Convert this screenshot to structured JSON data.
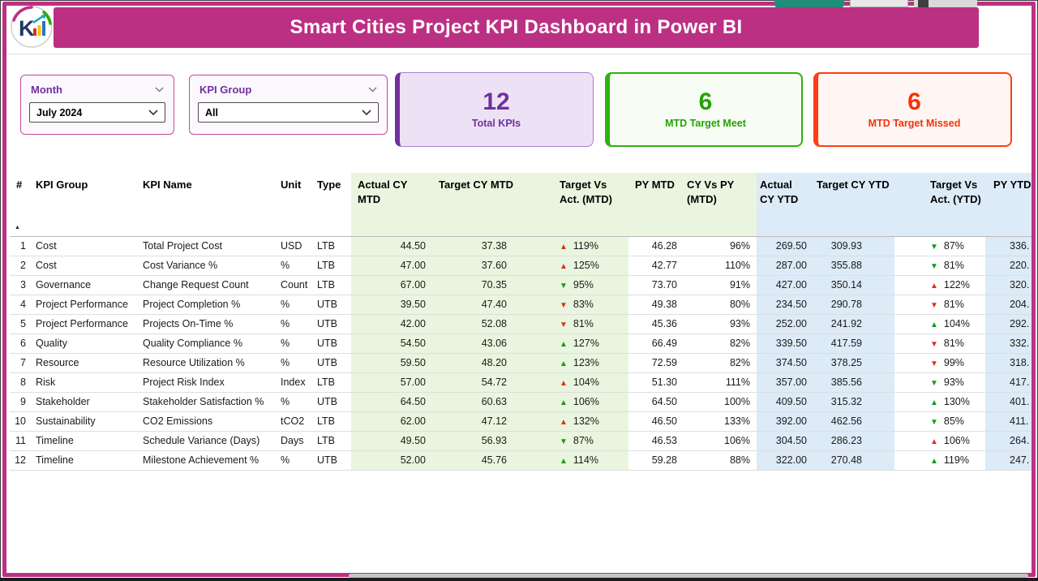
{
  "header": {
    "title": "Smart Cities Project KPI Dashboard in Power BI"
  },
  "filters": {
    "month": {
      "label": "Month",
      "value": "July 2024"
    },
    "kpi_group": {
      "label": "KPI Group",
      "value": "All"
    }
  },
  "cards": {
    "total_kpis": {
      "value": "12",
      "label": "Total KPIs",
      "color": "#7030A0"
    },
    "target_meet": {
      "value": "6",
      "label": "MTD Target Meet",
      "color": "#23A303"
    },
    "target_missed": {
      "value": "6",
      "label": "MTD Target Missed",
      "color": "#F53107"
    }
  },
  "colors": {
    "brand_magenta": "#BC3083",
    "purple": "#7030A0",
    "green": "#2FB10E",
    "red_orange": "#FF3E16",
    "arrow_good": "#119E11",
    "arrow_bad": "#E0301E",
    "mtd_band_bg": "#E9F5DF",
    "ytd_band_bg": "#DDEAF7"
  },
  "table": {
    "columns": [
      "#",
      "KPI Group",
      "KPI Name",
      "Unit",
      "Type",
      "Actual CY MTD",
      "Target CY MTD",
      "Target Vs Act. (MTD)",
      "PY MTD",
      "CY Vs PY (MTD)",
      "Actual CY YTD",
      "Target CY YTD",
      "Target Vs Act. (YTD)",
      "PY YTD"
    ],
    "sorted_by": "#",
    "sort_direction": "asc",
    "rows": [
      {
        "num": "1",
        "group": "Cost",
        "name": "Total Project Cost",
        "unit": "USD",
        "type": "LTB",
        "actual_mtd": "44.50",
        "target_mtd": "37.38",
        "tva_mtd": "119%",
        "tva_mtd_dir": "up",
        "tva_mtd_state": "bad",
        "py_mtd": "46.28",
        "cy_vs_py_mtd": "96%",
        "actual_ytd": "269.50",
        "target_ytd": "309.93",
        "tva_ytd": "87%",
        "tva_ytd_dir": "down",
        "tva_ytd_state": "good",
        "py_ytd": "336."
      },
      {
        "num": "2",
        "group": "Cost",
        "name": "Cost Variance %",
        "unit": "%",
        "type": "LTB",
        "actual_mtd": "47.00",
        "target_mtd": "37.60",
        "tva_mtd": "125%",
        "tva_mtd_dir": "up",
        "tva_mtd_state": "bad",
        "py_mtd": "42.77",
        "cy_vs_py_mtd": "110%",
        "actual_ytd": "287.00",
        "target_ytd": "355.88",
        "tva_ytd": "81%",
        "tva_ytd_dir": "down",
        "tva_ytd_state": "good",
        "py_ytd": "220."
      },
      {
        "num": "3",
        "group": "Governance",
        "name": "Change Request Count",
        "unit": "Count",
        "type": "LTB",
        "actual_mtd": "67.00",
        "target_mtd": "70.35",
        "tva_mtd": "95%",
        "tva_mtd_dir": "down",
        "tva_mtd_state": "good",
        "py_mtd": "73.70",
        "cy_vs_py_mtd": "91%",
        "actual_ytd": "427.00",
        "target_ytd": "350.14",
        "tva_ytd": "122%",
        "tva_ytd_dir": "up",
        "tva_ytd_state": "bad",
        "py_ytd": "320."
      },
      {
        "num": "4",
        "group": "Project Performance",
        "name": "Project Completion %",
        "unit": "%",
        "type": "UTB",
        "actual_mtd": "39.50",
        "target_mtd": "47.40",
        "tva_mtd": "83%",
        "tva_mtd_dir": "down",
        "tva_mtd_state": "bad",
        "py_mtd": "49.38",
        "cy_vs_py_mtd": "80%",
        "actual_ytd": "234.50",
        "target_ytd": "290.78",
        "tva_ytd": "81%",
        "tva_ytd_dir": "down",
        "tva_ytd_state": "bad",
        "py_ytd": "204."
      },
      {
        "num": "5",
        "group": "Project Performance",
        "name": "Projects On-Time %",
        "unit": "%",
        "type": "UTB",
        "actual_mtd": "42.00",
        "target_mtd": "52.08",
        "tva_mtd": "81%",
        "tva_mtd_dir": "down",
        "tva_mtd_state": "bad",
        "py_mtd": "45.36",
        "cy_vs_py_mtd": "93%",
        "actual_ytd": "252.00",
        "target_ytd": "241.92",
        "tva_ytd": "104%",
        "tva_ytd_dir": "up",
        "tva_ytd_state": "good",
        "py_ytd": "292."
      },
      {
        "num": "6",
        "group": "Quality",
        "name": "Quality Compliance %",
        "unit": "%",
        "type": "UTB",
        "actual_mtd": "54.50",
        "target_mtd": "43.06",
        "tva_mtd": "127%",
        "tva_mtd_dir": "up",
        "tva_mtd_state": "good",
        "py_mtd": "66.49",
        "cy_vs_py_mtd": "82%",
        "actual_ytd": "339.50",
        "target_ytd": "417.59",
        "tva_ytd": "81%",
        "tva_ytd_dir": "down",
        "tva_ytd_state": "bad",
        "py_ytd": "332."
      },
      {
        "num": "7",
        "group": "Resource",
        "name": "Resource Utilization %",
        "unit": "%",
        "type": "UTB",
        "actual_mtd": "59.50",
        "target_mtd": "48.20",
        "tva_mtd": "123%",
        "tva_mtd_dir": "up",
        "tva_mtd_state": "good",
        "py_mtd": "72.59",
        "cy_vs_py_mtd": "82%",
        "actual_ytd": "374.50",
        "target_ytd": "378.25",
        "tva_ytd": "99%",
        "tva_ytd_dir": "down",
        "tva_ytd_state": "bad",
        "py_ytd": "318."
      },
      {
        "num": "8",
        "group": "Risk",
        "name": "Project Risk Index",
        "unit": "Index",
        "type": "LTB",
        "actual_mtd": "57.00",
        "target_mtd": "54.72",
        "tva_mtd": "104%",
        "tva_mtd_dir": "up",
        "tva_mtd_state": "bad",
        "py_mtd": "51.30",
        "cy_vs_py_mtd": "111%",
        "actual_ytd": "357.00",
        "target_ytd": "385.56",
        "tva_ytd": "93%",
        "tva_ytd_dir": "down",
        "tva_ytd_state": "good",
        "py_ytd": "417."
      },
      {
        "num": "9",
        "group": "Stakeholder",
        "name": "Stakeholder Satisfaction %",
        "unit": "%",
        "type": "UTB",
        "actual_mtd": "64.50",
        "target_mtd": "60.63",
        "tva_mtd": "106%",
        "tva_mtd_dir": "up",
        "tva_mtd_state": "good",
        "py_mtd": "64.50",
        "cy_vs_py_mtd": "100%",
        "actual_ytd": "409.50",
        "target_ytd": "315.32",
        "tva_ytd": "130%",
        "tva_ytd_dir": "up",
        "tva_ytd_state": "good",
        "py_ytd": "401."
      },
      {
        "num": "10",
        "group": "Sustainability",
        "name": "CO2 Emissions",
        "unit": "tCO2",
        "type": "LTB",
        "actual_mtd": "62.00",
        "target_mtd": "47.12",
        "tva_mtd": "132%",
        "tva_mtd_dir": "up",
        "tva_mtd_state": "bad",
        "py_mtd": "46.50",
        "cy_vs_py_mtd": "133%",
        "actual_ytd": "392.00",
        "target_ytd": "462.56",
        "tva_ytd": "85%",
        "tva_ytd_dir": "down",
        "tva_ytd_state": "good",
        "py_ytd": "411."
      },
      {
        "num": "11",
        "group": "Timeline",
        "name": "Schedule Variance (Days)",
        "unit": "Days",
        "type": "LTB",
        "actual_mtd": "49.50",
        "target_mtd": "56.93",
        "tva_mtd": "87%",
        "tva_mtd_dir": "down",
        "tva_mtd_state": "good",
        "py_mtd": "46.53",
        "cy_vs_py_mtd": "106%",
        "actual_ytd": "304.50",
        "target_ytd": "286.23",
        "tva_ytd": "106%",
        "tva_ytd_dir": "up",
        "tva_ytd_state": "bad",
        "py_ytd": "264."
      },
      {
        "num": "12",
        "group": "Timeline",
        "name": "Milestone Achievement %",
        "unit": "%",
        "type": "UTB",
        "actual_mtd": "52.00",
        "target_mtd": "45.76",
        "tva_mtd": "114%",
        "tva_mtd_dir": "up",
        "tva_mtd_state": "good",
        "py_mtd": "59.28",
        "cy_vs_py_mtd": "88%",
        "actual_ytd": "322.00",
        "target_ytd": "270.48",
        "tva_ytd": "119%",
        "tva_ytd_dir": "up",
        "tva_ytd_state": "good",
        "py_ytd": "247."
      }
    ]
  }
}
